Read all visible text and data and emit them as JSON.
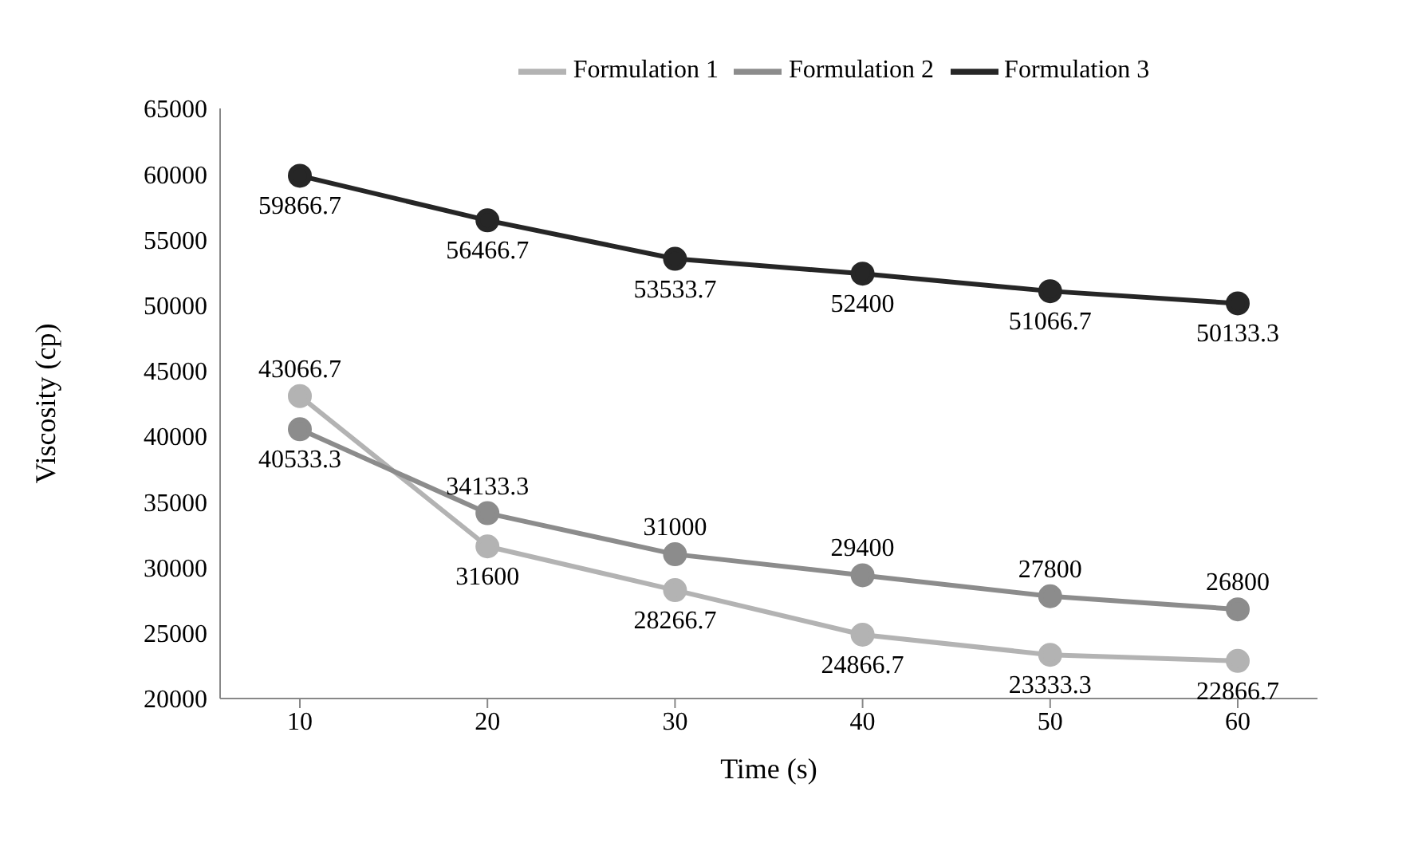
{
  "chart_data": {
    "type": "line",
    "xlabel": "Time (s)",
    "ylabel": "Viscosity (cp)",
    "categories": [
      "10",
      "20",
      "30",
      "40",
      "50",
      "60"
    ],
    "series": [
      {
        "name": "Formulation 1",
        "color": "#b3b3b3",
        "values": [
          43066.7,
          31600,
          28266.7,
          24866.7,
          23333.3,
          22866.7
        ]
      },
      {
        "name": "Formulation 2",
        "color": "#8c8c8c",
        "values": [
          40533.3,
          34133.3,
          31000,
          29400,
          27800,
          26800
        ]
      },
      {
        "name": "Formulation 3",
        "color": "#262626",
        "values": [
          59866.7,
          56466.7,
          53533.7,
          52400,
          51066.7,
          50133.3
        ]
      }
    ],
    "ylim": [
      20000,
      65000
    ],
    "yticks": [
      20000,
      25000,
      30000,
      35000,
      40000,
      45000,
      50000,
      55000,
      60000,
      65000
    ],
    "grid": false,
    "legend": "top",
    "marker": "circle",
    "line_style": "solid",
    "data_labels": true
  }
}
